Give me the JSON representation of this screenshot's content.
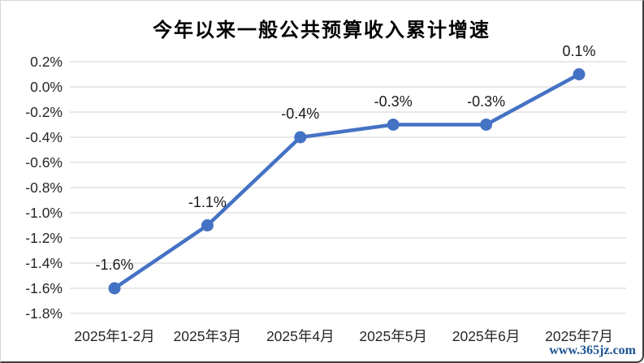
{
  "title": "今年以来一般公共预算收入累计增速",
  "watermark": "www.365jz.com",
  "colors": {
    "line": "#4472C4",
    "marker": "#4472C4",
    "grid": "#D9D9D9",
    "axis_text": "#262626",
    "title_text": "#000000",
    "watermark_text": "#1A5291",
    "background": "#FFFFFF"
  },
  "chart_data": {
    "type": "line",
    "title": "今年以来一般公共预算收入累计增速",
    "categories": [
      "2025年1-2月",
      "2025年3月",
      "2025年4月",
      "2025年5月",
      "2025年6月",
      "2025年7月"
    ],
    "series": [
      {
        "name": "一般公共预算收入累计增速",
        "values": [
          -1.6,
          -1.1,
          -0.4,
          -0.3,
          -0.3,
          0.1
        ],
        "data_labels": [
          "-1.6%",
          "-1.1%",
          "-0.4%",
          "-0.3%",
          "-0.3%",
          "0.1%"
        ]
      }
    ],
    "xlabel": "",
    "ylabel": "",
    "ylim": [
      -1.8,
      0.2
    ],
    "y_ticks": [
      {
        "label": "0.2%",
        "value": 0.2
      },
      {
        "label": "0.0%",
        "value": 0.0
      },
      {
        "label": "-0.2%",
        "value": -0.2
      },
      {
        "label": "-0.4%",
        "value": -0.4
      },
      {
        "label": "-0.6%",
        "value": -0.6
      },
      {
        "label": "-0.8%",
        "value": -0.8
      },
      {
        "label": "-1.0%",
        "value": -1.0
      },
      {
        "label": "-1.2%",
        "value": -1.2
      },
      {
        "label": "-1.4%",
        "value": -1.4
      },
      {
        "label": "-1.6%",
        "value": -1.6
      },
      {
        "label": "-1.8%",
        "value": -1.8
      }
    ],
    "grid": true,
    "legend": false,
    "marker": "circle"
  }
}
